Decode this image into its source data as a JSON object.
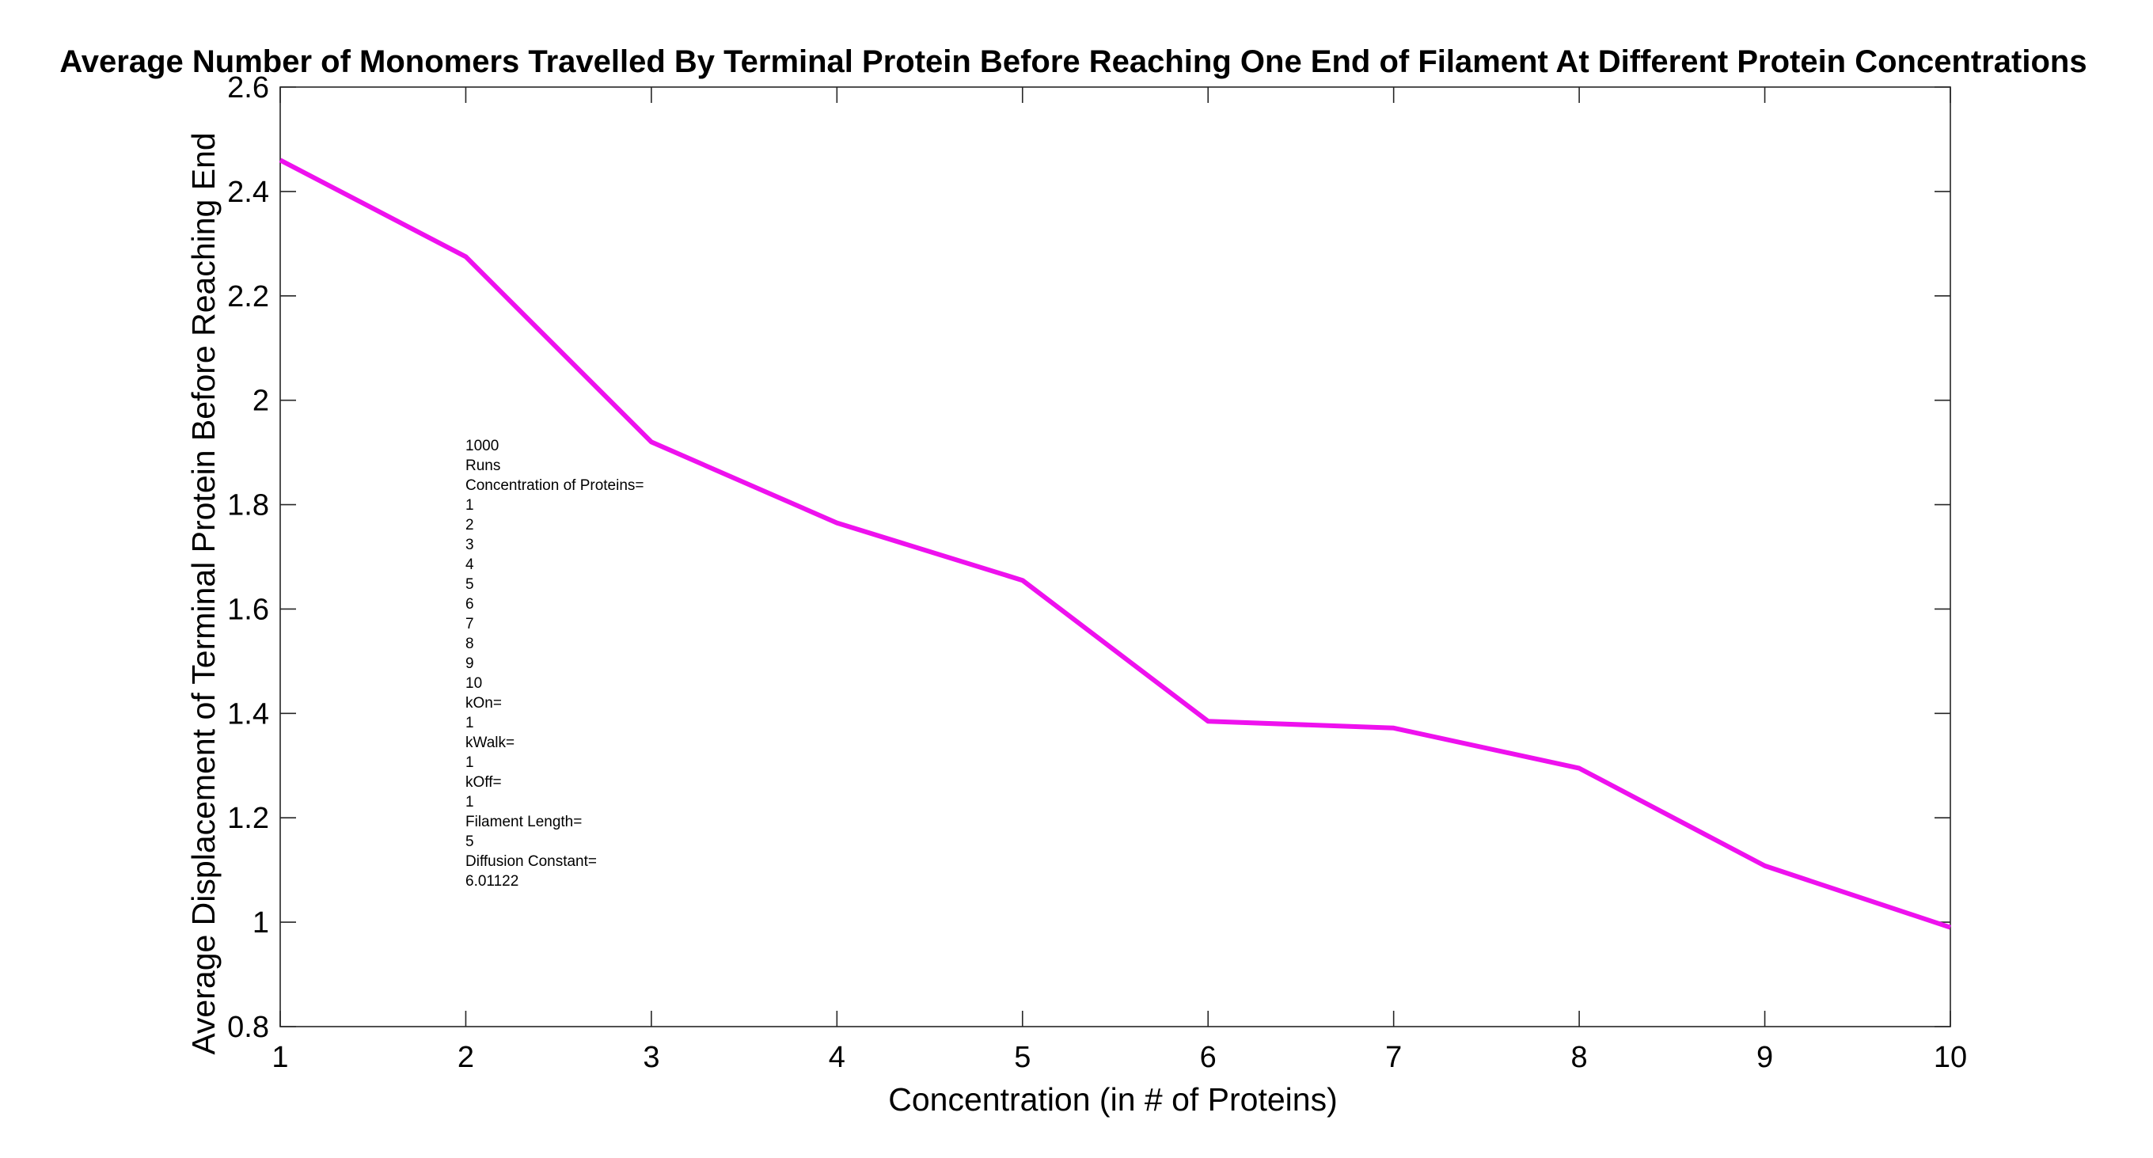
{
  "chart_data": {
    "type": "line",
    "title": "Average Number of Monomers Travelled By Terminal Protein Before Reaching One End of Filament At Different Protein Concentrations",
    "xlabel": "Concentration (in # of Proteins)",
    "ylabel": "Average Displacement of Terminal Protein  Before Reaching End",
    "xlim": [
      1,
      10
    ],
    "ylim": [
      0.8,
      2.6
    ],
    "x_ticks": [
      "1",
      "2",
      "3",
      "4",
      "5",
      "6",
      "7",
      "8",
      "9",
      "10"
    ],
    "y_ticks": [
      "0.8",
      "1",
      "1.2",
      "1.4",
      "1.6",
      "1.8",
      "2",
      "2.2",
      "2.4",
      "2.6"
    ],
    "grid": false,
    "series": [
      {
        "color": "#ee11ee",
        "x": [
          1,
          2,
          3,
          4,
          5,
          6,
          7,
          8,
          9,
          10
        ],
        "values": [
          2.46,
          2.275,
          1.92,
          1.765,
          1.655,
          1.385,
          1.372,
          1.295,
          1.108,
          0.99
        ]
      }
    ],
    "annotation": [
      "1000",
      "Runs",
      "Concentration of Proteins=",
      "1",
      "2",
      "3",
      "4",
      "5",
      "6",
      "7",
      "8",
      "9",
      "10",
      "kOn=",
      "1",
      "kWalk=",
      "1",
      "kOff=",
      "1",
      "Filament Length=",
      "5",
      "Diffusion Constant=",
      "6.01122"
    ]
  }
}
